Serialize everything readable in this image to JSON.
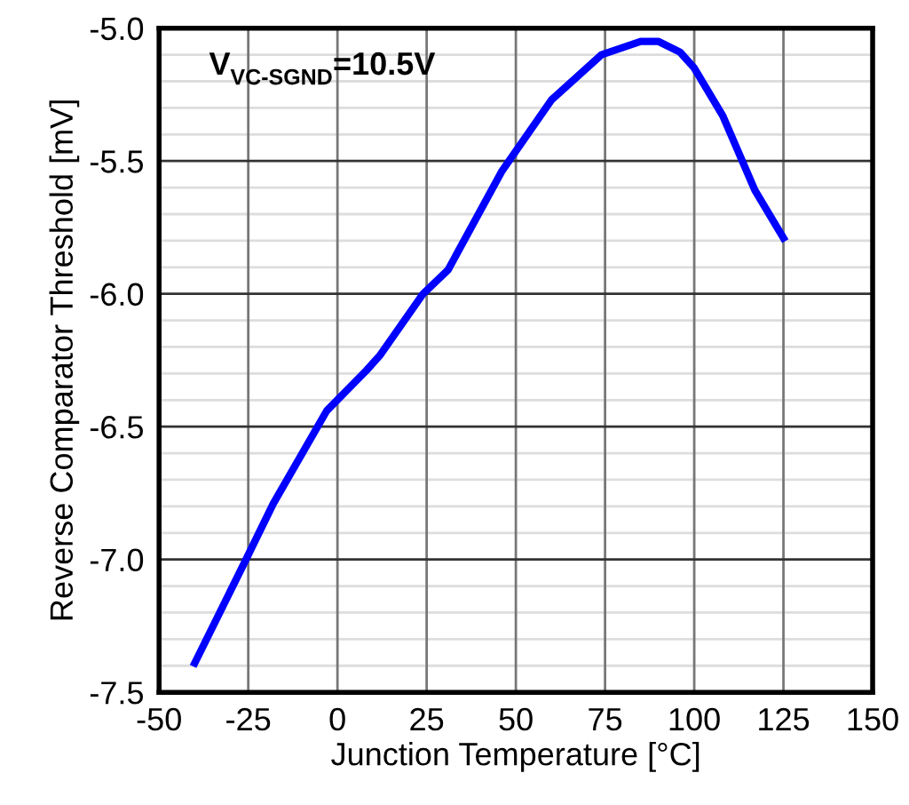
{
  "chart_data": {
    "type": "line",
    "xlabel": "Junction Temperature [°C]",
    "ylabel": "Reverse Comparator Threshold [mV]",
    "annotations": [
      "V$_{VC-SGND}$=10.5V"
    ],
    "series": [
      {
        "color": "#0000ff",
        "x": [
          -40,
          -26,
          -18,
          -3,
          8,
          12,
          24,
          31,
          46,
          60,
          74,
          85,
          90,
          96,
          100,
          108,
          117,
          125
        ],
        "values": [
          -7.39,
          -7.01,
          -6.79,
          -6.44,
          -6.29,
          -6.23,
          -6.0,
          -5.91,
          -5.54,
          -5.27,
          -5.1,
          -5.05,
          -5.05,
          -5.09,
          -5.15,
          -5.33,
          -5.61,
          -5.79
        ]
      }
    ],
    "xlim": [
      -50,
      150
    ],
    "xticks": [
      -50,
      -25,
      0,
      25,
      50,
      75,
      100,
      125,
      150
    ],
    "ylim": [
      -7.5,
      -5.0
    ],
    "yticks": [
      -7.5,
      {
        "value": -7,
        "label": "-7.0"
      },
      -6.5,
      {
        "value": -6,
        "label": "-6.0"
      },
      -5.5,
      {
        "value": -5,
        "label": "-5.0"
      }
    ],
    "grid": true,
    "legend": false,
    "marker": "none",
    "line_style": "solid"
  }
}
